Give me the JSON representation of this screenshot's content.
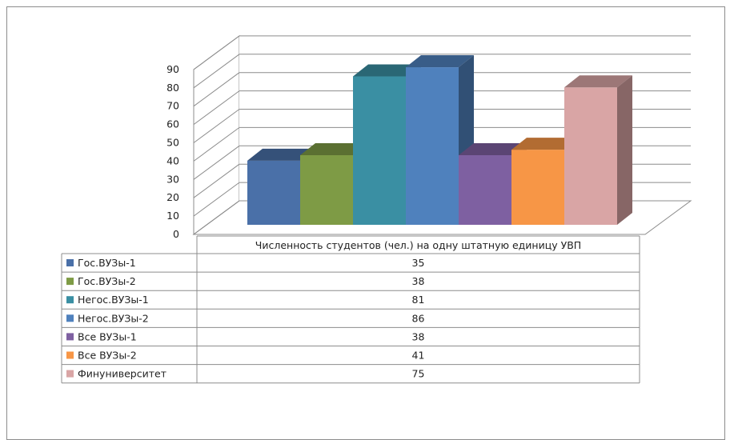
{
  "chart_data": {
    "type": "bar",
    "categories": [
      "Численность студентов (чел.) на одну штатную единицу УВП"
    ],
    "ylim": [
      0,
      90
    ],
    "yticks": [
      0,
      10,
      20,
      30,
      40,
      50,
      60,
      70,
      80,
      90
    ],
    "grid": true,
    "legend_placement": "data-table",
    "series": [
      {
        "name": "Гос.ВУЗы-1",
        "values": [
          35
        ],
        "color": "#4a70a8"
      },
      {
        "name": "Гос.ВУЗы-2",
        "values": [
          38
        ],
        "color": "#7e9b45"
      },
      {
        "name": "Негос.ВУЗы-1",
        "values": [
          81
        ],
        "color": "#3a8fa3"
      },
      {
        "name": "Негос.ВУЗы-2",
        "values": [
          86
        ],
        "color": "#4f81bd"
      },
      {
        "name": "Все ВУЗы-1",
        "values": [
          38
        ],
        "color": "#7e60a1"
      },
      {
        "name": "Все ВУЗы-2",
        "values": [
          41
        ],
        "color": "#f79646"
      },
      {
        "name": "Финуниверситет",
        "values": [
          75
        ],
        "color": "#d9a5a5"
      }
    ],
    "table": {
      "header": "Численность студентов (чел.) на одну штатную единицу УВП",
      "rows": [
        {
          "label": "Гос.ВУЗы-1",
          "value": "35"
        },
        {
          "label": "Гос.ВУЗы-2",
          "value": "38"
        },
        {
          "label": "Негос.ВУЗы-1",
          "value": "81"
        },
        {
          "label": "Негос.ВУЗы-2",
          "value": "86"
        },
        {
          "label": "Все ВУЗы-1",
          "value": "38"
        },
        {
          "label": "Все ВУЗы-2",
          "value": "41"
        },
        {
          "label": "Финуниверситет",
          "value": "75"
        }
      ]
    }
  }
}
